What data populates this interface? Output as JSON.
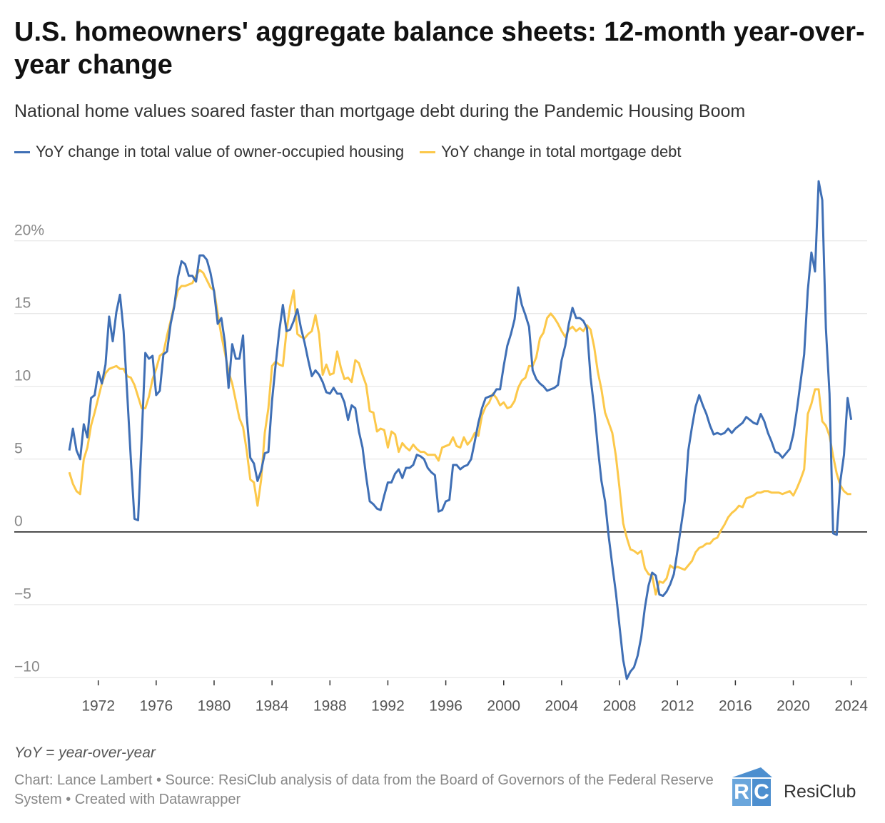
{
  "chart_data": {
    "type": "line",
    "title": "U.S. homeowners' aggregate balance sheets: 12-month year-over-year change",
    "subtitle": "National home values soared faster than mortgage debt during the Pandemic Housing Boom",
    "note": "YoY = year-over-year",
    "source": "Chart: Lance Lambert • Source: ResiClub analysis of data from the Board of Governors of the Federal Reserve System • Created with Datawrapper",
    "brand": "ResiClub",
    "x": [
      1970,
      1970.25,
      1970.5,
      1970.75,
      1971,
      1971.25,
      1971.5,
      1971.75,
      1972,
      1972.25,
      1972.5,
      1972.75,
      1973,
      1973.25,
      1973.5,
      1973.75,
      1974,
      1974.25,
      1974.5,
      1974.75,
      1975,
      1975.25,
      1975.5,
      1975.75,
      1976,
      1976.25,
      1976.5,
      1976.75,
      1977,
      1977.25,
      1977.5,
      1977.75,
      1978,
      1978.25,
      1978.5,
      1978.75,
      1979,
      1979.25,
      1979.5,
      1979.75,
      1980,
      1980.25,
      1980.5,
      1980.75,
      1981,
      1981.25,
      1981.5,
      1981.75,
      1982,
      1982.25,
      1982.5,
      1982.75,
      1983,
      1983.25,
      1983.5,
      1983.75,
      1984,
      1984.25,
      1984.5,
      1984.75,
      1985,
      1985.25,
      1985.5,
      1985.75,
      1986,
      1986.25,
      1986.5,
      1986.75,
      1987,
      1987.25,
      1987.5,
      1987.75,
      1988,
      1988.25,
      1988.5,
      1988.75,
      1989,
      1989.25,
      1989.5,
      1989.75,
      1990,
      1990.25,
      1990.5,
      1990.75,
      1991,
      1991.25,
      1991.5,
      1991.75,
      1992,
      1992.25,
      1992.5,
      1992.75,
      1993,
      1993.25,
      1993.5,
      1993.75,
      1994,
      1994.25,
      1994.5,
      1994.75,
      1995,
      1995.25,
      1995.5,
      1995.75,
      1996,
      1996.25,
      1996.5,
      1996.75,
      1997,
      1997.25,
      1997.5,
      1997.75,
      1998,
      1998.25,
      1998.5,
      1998.75,
      1999,
      1999.25,
      1999.5,
      1999.75,
      2000,
      2000.25,
      2000.5,
      2000.75,
      2001,
      2001.25,
      2001.5,
      2001.75,
      2002,
      2002.25,
      2002.5,
      2002.75,
      2003,
      2003.25,
      2003.5,
      2003.75,
      2004,
      2004.25,
      2004.5,
      2004.75,
      2005,
      2005.25,
      2005.5,
      2005.75,
      2006,
      2006.25,
      2006.5,
      2006.75,
      2007,
      2007.25,
      2007.5,
      2007.75,
      2008,
      2008.25,
      2008.5,
      2008.75,
      2009,
      2009.25,
      2009.5,
      2009.75,
      2010,
      2010.25,
      2010.5,
      2010.75,
      2011,
      2011.25,
      2011.5,
      2011.75,
      2012,
      2012.25,
      2012.5,
      2012.75,
      2013,
      2013.25,
      2013.5,
      2013.75,
      2014,
      2014.25,
      2014.5,
      2014.75,
      2015,
      2015.25,
      2015.5,
      2015.75,
      2016,
      2016.25,
      2016.5,
      2016.75,
      2017,
      2017.25,
      2017.5,
      2017.75,
      2018,
      2018.25,
      2018.5,
      2018.75,
      2019,
      2019.25,
      2019.5,
      2019.75,
      2020,
      2020.25,
      2020.5,
      2020.75,
      2021,
      2021.25,
      2021.5,
      2021.75,
      2022,
      2022.25,
      2022.5,
      2022.75,
      2023,
      2023.25,
      2023.5,
      2023.75,
      2024
    ],
    "series": [
      {
        "name": "YoY change in total value of owner-occupied housing",
        "color": "#3f6fb5",
        "values": [
          5.6,
          7.1,
          5.6,
          5.0,
          7.4,
          6.5,
          9.2,
          9.4,
          11.0,
          10.2,
          11.5,
          14.8,
          13.1,
          15.1,
          16.3,
          13.8,
          9.5,
          5.0,
          0.9,
          0.8,
          6.5,
          12.3,
          11.9,
          12.1,
          9.4,
          9.7,
          12.2,
          12.4,
          14.3,
          15.5,
          17.5,
          18.6,
          18.4,
          17.6,
          17.6,
          17.2,
          19.0,
          19.0,
          18.7,
          17.8,
          16.5,
          14.3,
          14.7,
          13.0,
          9.9,
          12.9,
          11.9,
          11.9,
          13.5,
          8.0,
          5.1,
          4.7,
          3.5,
          4.2,
          5.4,
          5.5,
          9.0,
          11.5,
          13.8,
          15.6,
          13.8,
          13.9,
          14.5,
          15.3,
          14.0,
          13.0,
          11.8,
          10.7,
          11.1,
          10.8,
          10.3,
          9.6,
          9.5,
          9.9,
          9.5,
          9.5,
          8.9,
          7.7,
          8.7,
          8.5,
          6.9,
          5.8,
          3.8,
          2.1,
          1.9,
          1.6,
          1.5,
          2.5,
          3.4,
          3.4,
          4.0,
          4.3,
          3.7,
          4.4,
          4.4,
          4.6,
          5.3,
          5.2,
          5.0,
          4.4,
          4.1,
          3.9,
          1.4,
          1.5,
          2.1,
          2.2,
          4.6,
          4.6,
          4.3,
          4.5,
          4.6,
          5.0,
          6.2,
          7.5,
          8.5,
          9.2,
          9.3,
          9.4,
          9.8,
          9.8,
          11.4,
          12.8,
          13.6,
          14.6,
          16.8,
          15.6,
          14.9,
          14.1,
          11.1,
          10.5,
          10.2,
          10.0,
          9.7,
          9.8,
          9.9,
          10.1,
          11.8,
          12.8,
          14.3,
          15.4,
          14.7,
          14.7,
          14.5,
          14.0,
          10.6,
          8.5,
          5.8,
          3.5,
          2.1,
          -0.3,
          -2.3,
          -4.2,
          -6.5,
          -8.8,
          -10.1,
          -9.6,
          -9.3,
          -8.5,
          -7.2,
          -5.2,
          -3.7,
          -2.8,
          -3.0,
          -4.3,
          -4.4,
          -4.1,
          -3.6,
          -2.9,
          -1.3,
          0.4,
          2.1,
          5.6,
          7.2,
          8.6,
          9.4,
          8.7,
          8.1,
          7.3,
          6.7,
          6.8,
          6.7,
          6.8,
          7.1,
          6.8,
          7.1,
          7.3,
          7.5,
          7.9,
          7.7,
          7.5,
          7.4,
          8.1,
          7.6,
          6.8,
          6.2,
          5.5,
          5.4,
          5.1,
          5.4,
          5.7,
          6.7,
          8.4,
          10.3,
          12.2,
          16.6,
          19.2,
          17.9,
          24.1,
          22.8,
          14.0,
          9.5,
          -0.1,
          -0.2,
          3.5,
          5.3,
          9.2,
          7.7
        ]
      },
      {
        "name": "YoY change in total mortgage debt",
        "color": "#fcc84a",
        "values": [
          4.1,
          3.3,
          2.8,
          2.6,
          5.0,
          5.8,
          7.3,
          8.2,
          9.2,
          10.2,
          10.9,
          11.2,
          11.3,
          11.4,
          11.2,
          11.2,
          10.7,
          10.6,
          10.1,
          9.3,
          8.5,
          8.5,
          9.3,
          10.5,
          11.2,
          12.1,
          12.3,
          13.5,
          14.5,
          15.6,
          16.6,
          16.9,
          16.9,
          17.0,
          17.1,
          17.6,
          18.0,
          17.8,
          17.3,
          16.8,
          16.6,
          15.0,
          13.5,
          12.3,
          11.0,
          10.2,
          9.0,
          7.8,
          7.2,
          5.6,
          3.6,
          3.4,
          1.8,
          3.6,
          6.8,
          8.5,
          11.4,
          11.7,
          11.5,
          11.4,
          13.8,
          15.5,
          16.6,
          13.6,
          13.4,
          13.3,
          13.6,
          13.8,
          14.9,
          13.6,
          10.8,
          11.5,
          10.8,
          10.9,
          12.4,
          11.3,
          10.5,
          10.6,
          10.3,
          11.8,
          11.6,
          10.8,
          10.1,
          8.3,
          8.2,
          6.9,
          7.1,
          7.0,
          5.8,
          6.9,
          6.7,
          5.5,
          6.1,
          5.8,
          5.6,
          6.0,
          5.7,
          5.5,
          5.5,
          5.3,
          5.3,
          5.3,
          4.9,
          5.8,
          5.9,
          6.0,
          6.5,
          5.9,
          5.8,
          6.5,
          6.0,
          6.3,
          6.8,
          6.6,
          8.0,
          8.6,
          8.9,
          9.5,
          9.2,
          8.7,
          8.9,
          8.5,
          8.6,
          9.0,
          9.9,
          10.4,
          10.6,
          11.4,
          11.4,
          12.0,
          13.3,
          13.7,
          14.7,
          15.0,
          14.7,
          14.3,
          13.8,
          13.4,
          13.9,
          14.1,
          13.8,
          14.0,
          13.8,
          14.2,
          13.9,
          12.7,
          11.0,
          9.8,
          8.2,
          7.5,
          6.8,
          5.2,
          3.0,
          0.6,
          -0.4,
          -1.2,
          -1.3,
          -1.5,
          -1.3,
          -2.5,
          -2.9,
          -3.0,
          -4.3,
          -3.4,
          -3.5,
          -3.2,
          -2.3,
          -2.5,
          -2.4,
          -2.5,
          -2.6,
          -2.3,
          -2.0,
          -1.4,
          -1.1,
          -1.0,
          -0.8,
          -0.8,
          -0.5,
          -0.4,
          0.1,
          0.5,
          1.0,
          1.3,
          1.5,
          1.8,
          1.7,
          2.3,
          2.4,
          2.5,
          2.7,
          2.7,
          2.8,
          2.8,
          2.7,
          2.7,
          2.7,
          2.6,
          2.7,
          2.8,
          2.5,
          3.0,
          3.6,
          4.3,
          8.1,
          8.8,
          9.8,
          9.8,
          7.6,
          7.3,
          6.6,
          5.2,
          4.0,
          3.2,
          2.8,
          2.6,
          2.6
        ]
      }
    ],
    "xlim": [
      1966.2,
      2025.1
    ],
    "xticks": [
      1972,
      1976,
      1980,
      1984,
      1988,
      1992,
      1996,
      2000,
      2004,
      2008,
      2012,
      2016,
      2020,
      2024
    ],
    "ylim": [
      -10.3,
      24.3
    ],
    "yticks": [
      {
        "value": -10,
        "label": "−10"
      },
      {
        "value": -5,
        "label": "−5"
      },
      0,
      5,
      10,
      15,
      {
        "value": 20,
        "label": "20%"
      }
    ],
    "grid": true
  }
}
